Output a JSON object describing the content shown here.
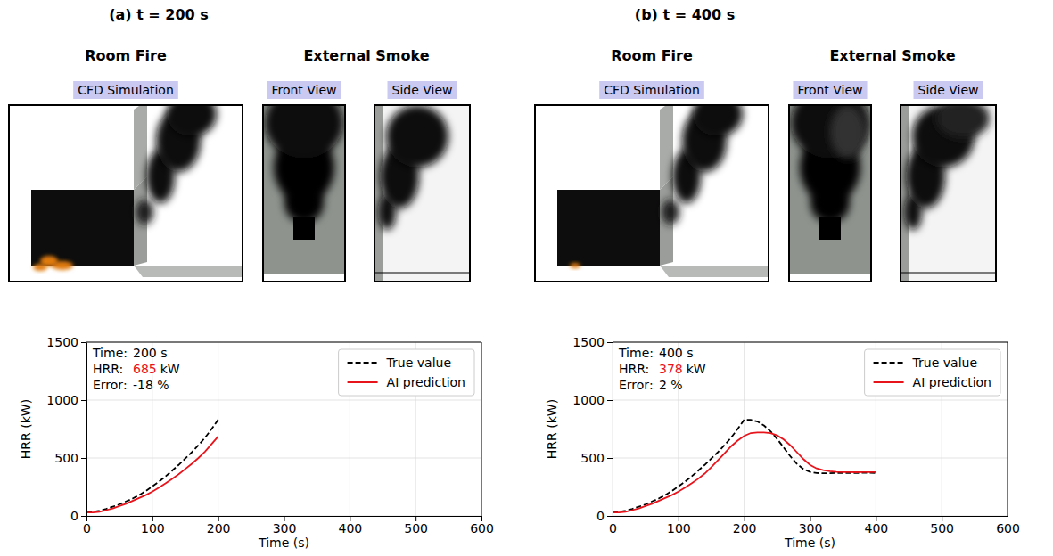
{
  "panels": [
    {
      "title": "(a) t = 200 s",
      "groups": [
        {
          "heading": "Room Fire",
          "views": [
            "CFD Simulation"
          ]
        },
        {
          "heading": "External Smoke",
          "views": [
            "Front View",
            "Side View"
          ]
        }
      ]
    },
    {
      "title": "(b) t = 400 s",
      "groups": [
        {
          "heading": "Room Fire",
          "views": [
            "CFD Simulation"
          ]
        },
        {
          "heading": "External Smoke",
          "views": [
            "Front View",
            "Side View"
          ]
        }
      ]
    }
  ],
  "chart_data": [
    {
      "type": "line",
      "x_label": "Time (s)",
      "y_label": "HRR (kW)",
      "annotations": [
        {
          "label": "Time:",
          "value": "200 s"
        },
        {
          "label": "HRR:",
          "value": "685",
          "unit": "kW"
        },
        {
          "label": "Error:",
          "value": "-18 %"
        }
      ],
      "x": [
        0,
        10,
        20,
        30,
        40,
        50,
        60,
        70,
        80,
        90,
        100,
        110,
        120,
        130,
        140,
        150,
        160,
        170,
        180,
        190,
        200
      ],
      "series": [
        {
          "name": "True value",
          "color": "#000000",
          "line_style": "dashed",
          "values": [
            40,
            35,
            45,
            60,
            80,
            100,
            125,
            150,
            180,
            215,
            255,
            295,
            340,
            390,
            440,
            495,
            550,
            610,
            675,
            750,
            830
          ]
        },
        {
          "name": "AI prediction",
          "color": "#e8141c",
          "line_style": "solid",
          "values": [
            30,
            30,
            35,
            50,
            65,
            85,
            105,
            130,
            155,
            180,
            210,
            245,
            280,
            320,
            360,
            405,
            450,
            500,
            555,
            620,
            685
          ]
        }
      ],
      "xlim": [
        0,
        600
      ],
      "xticks": [
        0,
        100,
        200,
        300,
        400,
        500,
        600
      ],
      "ylim": [
        0,
        1500
      ],
      "yticks": [
        0,
        500,
        1000,
        1500
      ],
      "grid": true,
      "legend": "upper right"
    },
    {
      "type": "line",
      "x_label": "Time (s)",
      "y_label": "HRR (kW)",
      "annotations": [
        {
          "label": "Time:",
          "value": "400 s"
        },
        {
          "label": "HRR:",
          "value": "378",
          "unit": "kW"
        },
        {
          "label": "Error:",
          "value": "2 %"
        }
      ],
      "x": [
        0,
        10,
        20,
        30,
        40,
        50,
        60,
        70,
        80,
        90,
        100,
        110,
        120,
        130,
        140,
        150,
        160,
        170,
        180,
        190,
        200,
        210,
        220,
        230,
        240,
        250,
        260,
        270,
        280,
        290,
        300,
        310,
        320,
        330,
        340,
        350,
        360,
        370,
        380,
        390,
        400
      ],
      "series": [
        {
          "name": "True value",
          "color": "#000000",
          "line_style": "dashed",
          "values": [
            40,
            35,
            45,
            60,
            80,
            100,
            125,
            150,
            180,
            215,
            255,
            295,
            340,
            390,
            440,
            495,
            550,
            610,
            675,
            750,
            830,
            830,
            815,
            780,
            730,
            665,
            590,
            515,
            450,
            405,
            380,
            370,
            368,
            368,
            370,
            370,
            370,
            370,
            372,
            372,
            371
          ]
        },
        {
          "name": "AI prediction",
          "color": "#e8141c",
          "line_style": "solid",
          "values": [
            30,
            30,
            35,
            50,
            65,
            85,
            105,
            130,
            155,
            180,
            210,
            245,
            280,
            320,
            365,
            420,
            480,
            540,
            600,
            650,
            690,
            715,
            720,
            720,
            715,
            695,
            660,
            610,
            550,
            490,
            440,
            410,
            395,
            385,
            380,
            378,
            378,
            377,
            378,
            378,
            378
          ]
        }
      ],
      "xlim": [
        0,
        600
      ],
      "xticks": [
        0,
        100,
        200,
        300,
        400,
        500,
        600
      ],
      "ylim": [
        0,
        1500
      ],
      "yticks": [
        0,
        500,
        1000,
        1500
      ],
      "grid": true,
      "legend": "upper right"
    }
  ]
}
